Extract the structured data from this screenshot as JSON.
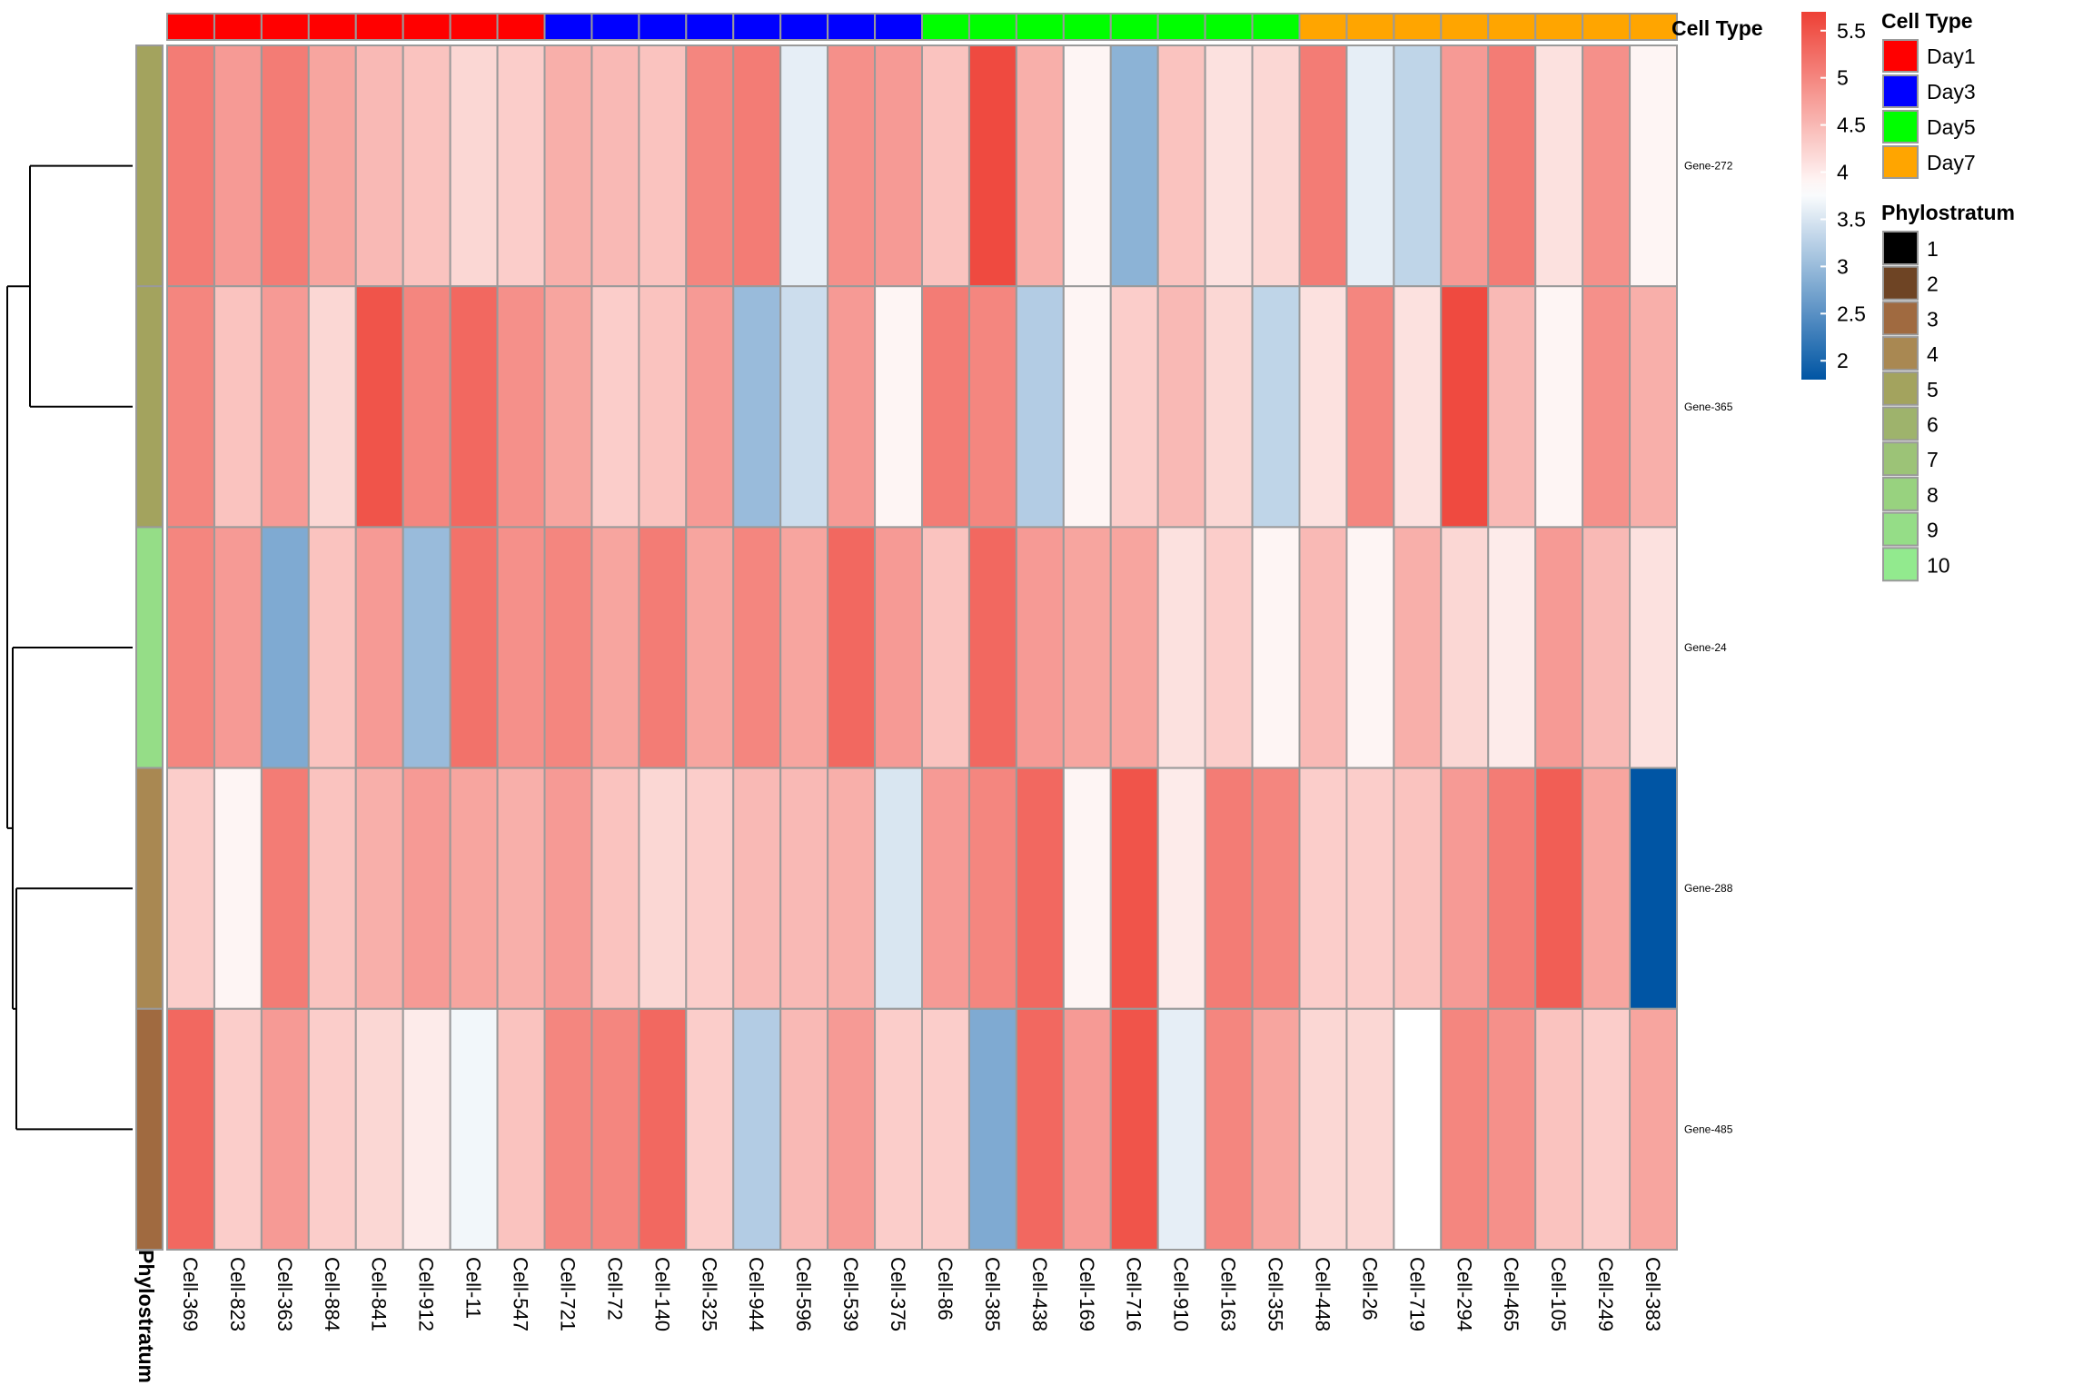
{
  "chart_data": {
    "type": "heatmap",
    "columns": [
      "Cell-369",
      "Cell-823",
      "Cell-363",
      "Cell-884",
      "Cell-841",
      "Cell-912",
      "Cell-11",
      "Cell-547",
      "Cell-721",
      "Cell-72",
      "Cell-140",
      "Cell-325",
      "Cell-944",
      "Cell-596",
      "Cell-539",
      "Cell-375",
      "Cell-86",
      "Cell-385",
      "Cell-438",
      "Cell-169",
      "Cell-716",
      "Cell-910",
      "Cell-163",
      "Cell-355",
      "Cell-448",
      "Cell-26",
      "Cell-719",
      "Cell-294",
      "Cell-465",
      "Cell-105",
      "Cell-249",
      "Cell-383"
    ],
    "rows": [
      "Gene-272",
      "Gene-365",
      "Gene-24",
      "Gene-288",
      "Gene-485"
    ],
    "column_cell_type": [
      "Day1",
      "Day1",
      "Day1",
      "Day1",
      "Day1",
      "Day1",
      "Day1",
      "Day1",
      "Day3",
      "Day3",
      "Day3",
      "Day3",
      "Day3",
      "Day3",
      "Day3",
      "Day3",
      "Day5",
      "Day5",
      "Day5",
      "Day5",
      "Day5",
      "Day5",
      "Day5",
      "Day5",
      "Day7",
      "Day7",
      "Day7",
      "Day7",
      "Day7",
      "Day7",
      "Day7",
      "Day7"
    ],
    "row_phylostratum": [
      5,
      5,
      9,
      4,
      3
    ],
    "values": [
      [
        5.1,
        4.8,
        5.1,
        4.7,
        4.5,
        4.4,
        4.2,
        4.3,
        4.6,
        4.5,
        4.4,
        5.0,
        5.1,
        3.6,
        4.9,
        4.8,
        4.4,
        5.6,
        4.6,
        3.9,
        2.9,
        4.4,
        4.1,
        4.2,
        5.1,
        3.6,
        3.3,
        4.8,
        5.1,
        4.1,
        4.9,
        3.9
      ],
      [
        5.0,
        4.4,
        4.8,
        4.2,
        5.5,
        5.0,
        5.3,
        4.9,
        4.7,
        4.3,
        4.4,
        4.8,
        3.0,
        3.4,
        4.8,
        3.9,
        5.1,
        5.0,
        3.2,
        3.9,
        4.3,
        4.5,
        4.2,
        3.3,
        4.1,
        5.0,
        4.1,
        5.6,
        4.5,
        3.9,
        4.9,
        4.6
      ],
      [
        5.0,
        4.8,
        2.8,
        4.4,
        4.8,
        3.0,
        5.2,
        4.9,
        5.0,
        4.7,
        5.1,
        4.7,
        5.0,
        4.7,
        5.3,
        4.8,
        4.4,
        5.3,
        4.8,
        4.7,
        4.7,
        4.1,
        4.3,
        3.9,
        4.5,
        3.9,
        4.6,
        4.2,
        4.0,
        4.8,
        4.5,
        4.1
      ],
      [
        4.3,
        3.9,
        5.1,
        4.4,
        4.6,
        4.8,
        4.7,
        4.6,
        4.8,
        4.4,
        4.2,
        4.3,
        4.5,
        4.5,
        4.6,
        3.5,
        4.8,
        5.0,
        5.3,
        3.9,
        5.5,
        4.0,
        5.1,
        5.0,
        4.3,
        4.3,
        4.4,
        4.8,
        5.1,
        5.4,
        4.7,
        1.8
      ],
      [
        5.3,
        4.3,
        4.8,
        4.3,
        4.2,
        4.0,
        3.7,
        4.4,
        5.0,
        5.0,
        5.3,
        4.3,
        3.2,
        4.5,
        4.8,
        4.3,
        4.3,
        2.8,
        5.3,
        4.8,
        5.5,
        3.6,
        5.0,
        4.7,
        4.2,
        4.2,
        3.8,
        5.0,
        4.9,
        4.4,
        4.3,
        4.7
      ]
    ],
    "color_scale": {
      "ticks": [
        5.5,
        5,
        4.5,
        4,
        3.5,
        3,
        2.5,
        2
      ],
      "min": 1.8,
      "mid": 3.8,
      "max": 5.7,
      "low_color": "#0055A4",
      "mid_color": "#FFFFFF",
      "high_color": "#EE4035"
    },
    "legend_cell_type": {
      "title": "Cell Type",
      "entries": [
        {
          "label": "Day1",
          "color": "#FF0000"
        },
        {
          "label": "Day3",
          "color": "#0000FF"
        },
        {
          "label": "Day5",
          "color": "#00FF00"
        },
        {
          "label": "Day7",
          "color": "#FFA500"
        }
      ]
    },
    "legend_phylostratum": {
      "title": "Phylostratum",
      "entries": [
        {
          "label": "1",
          "color": "#000000"
        },
        {
          "label": "2",
          "color": "#6E4424"
        },
        {
          "label": "3",
          "color": "#A06A40"
        },
        {
          "label": "4",
          "color": "#A98852"
        },
        {
          "label": "5",
          "color": "#A3A35E"
        },
        {
          "label": "6",
          "color": "#9EB36C"
        },
        {
          "label": "7",
          "color": "#9CC377"
        },
        {
          "label": "8",
          "color": "#98D27F"
        },
        {
          "label": "9",
          "color": "#95DD87"
        },
        {
          "label": "10",
          "color": "#92EA8E"
        }
      ]
    },
    "annotation_labels": {
      "top": "Cell Type",
      "left": "Phylostratum"
    },
    "dendrogram": "rows"
  }
}
